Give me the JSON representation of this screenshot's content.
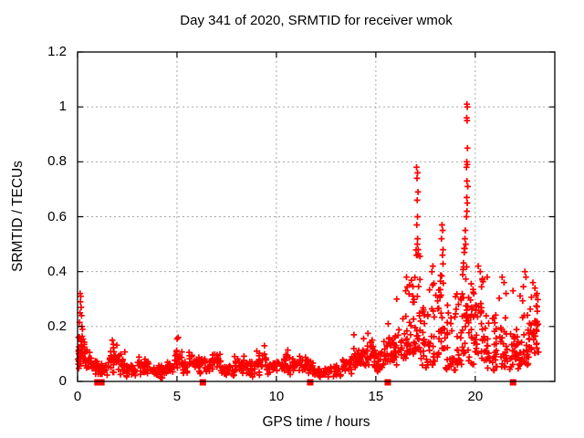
{
  "chart_data": {
    "type": "scatter",
    "title": "Day 341 of 2020, SRMTID for receiver wmok",
    "xlabel": "GPS time / hours",
    "ylabel": "SRMTID / TECUs",
    "xlim": [
      0,
      24
    ],
    "ylim": [
      0,
      1.2
    ],
    "grid": true,
    "legend": "none",
    "marker": "plus",
    "marker_color": "#ff0000",
    "grid_color": "#a6a6a6",
    "border_color": "#000000",
    "x_ticks": {
      "values": [
        0,
        5,
        10,
        15,
        20
      ],
      "labels": [
        "0",
        "5",
        "10",
        "15",
        "20"
      ]
    },
    "y_ticks": {
      "values": [
        0,
        0.2,
        0.4,
        0.6,
        0.8,
        1.0,
        1.2
      ],
      "labels": [
        "0",
        "0.2",
        "0.4",
        "0.6",
        "0.8",
        "1",
        "1.2"
      ]
    },
    "notable_points": [
      [
        0.13,
        0.32
      ],
      [
        0.16,
        0.31
      ],
      [
        0.14,
        0.29
      ],
      [
        0.18,
        0.27
      ],
      [
        0.12,
        0.25
      ],
      [
        0.2,
        0.24
      ],
      [
        0.1,
        0.215
      ],
      [
        0.22,
        0.2
      ],
      [
        0.25,
        0.19
      ],
      [
        1.75,
        0.15
      ],
      [
        1.8,
        0.135
      ],
      [
        5.0,
        0.155
      ],
      [
        5.06,
        0.16
      ],
      [
        9.4,
        0.13
      ],
      [
        13.9,
        0.17
      ],
      [
        14.6,
        0.175
      ],
      [
        15.62,
        0.21
      ],
      [
        16.05,
        0.3
      ],
      [
        16.5,
        0.33
      ],
      [
        17.05,
        0.78
      ],
      [
        17.1,
        0.76
      ],
      [
        17.07,
        0.74
      ],
      [
        17.12,
        0.69
      ],
      [
        17.08,
        0.66
      ],
      [
        17.1,
        0.6
      ],
      [
        17.06,
        0.57
      ],
      [
        17.1,
        0.52
      ],
      [
        17.09,
        0.5
      ],
      [
        17.13,
        0.48
      ],
      [
        17.05,
        0.46
      ],
      [
        17.82,
        0.4
      ],
      [
        17.87,
        0.42
      ],
      [
        18.33,
        0.57
      ],
      [
        18.36,
        0.55
      ],
      [
        18.3,
        0.52
      ],
      [
        18.38,
        0.48
      ],
      [
        18.35,
        0.46
      ],
      [
        19.58,
        1.01
      ],
      [
        19.6,
        1.0
      ],
      [
        19.57,
        0.96
      ],
      [
        19.59,
        0.95
      ],
      [
        19.61,
        0.85
      ],
      [
        19.57,
        0.8
      ],
      [
        19.6,
        0.79
      ],
      [
        19.56,
        0.78
      ],
      [
        19.58,
        0.73
      ],
      [
        19.62,
        0.71
      ],
      [
        19.57,
        0.67
      ],
      [
        19.6,
        0.65
      ],
      [
        19.58,
        0.62
      ],
      [
        19.56,
        0.6
      ],
      [
        19.5,
        0.55
      ],
      [
        19.48,
        0.52
      ],
      [
        19.52,
        0.5
      ],
      [
        19.45,
        0.47
      ],
      [
        20.15,
        0.42
      ],
      [
        20.25,
        0.4
      ],
      [
        20.6,
        0.38
      ],
      [
        21.35,
        0.38
      ],
      [
        21.45,
        0.36
      ],
      [
        21.9,
        0.33
      ],
      [
        22.5,
        0.4
      ],
      [
        22.55,
        0.38
      ],
      [
        22.9,
        0.36
      ],
      [
        23.0,
        0.34
      ],
      [
        23.1,
        0.32
      ]
    ],
    "dense_bands": [
      [
        0.02,
        0.12,
        0.02,
        0.12,
        10
      ],
      [
        0.05,
        0.35,
        0.04,
        0.2,
        26
      ],
      [
        0.35,
        0.65,
        0.03,
        0.14,
        16
      ],
      [
        0.65,
        1.0,
        0.02,
        0.1,
        18
      ],
      [
        1.0,
        1.5,
        0.015,
        0.07,
        24
      ],
      [
        1.5,
        2.0,
        0.02,
        0.14,
        26
      ],
      [
        2.0,
        2.45,
        0.02,
        0.11,
        20
      ],
      [
        2.45,
        3.0,
        0.015,
        0.07,
        24
      ],
      [
        3.0,
        3.6,
        0.02,
        0.09,
        26
      ],
      [
        3.6,
        4.4,
        0.01,
        0.065,
        32
      ],
      [
        4.4,
        4.9,
        0.02,
        0.08,
        22
      ],
      [
        4.9,
        5.25,
        0.03,
        0.13,
        16
      ],
      [
        5.25,
        5.6,
        0.02,
        0.08,
        16
      ],
      [
        5.6,
        6.1,
        0.02,
        0.11,
        20
      ],
      [
        6.1,
        6.6,
        0.02,
        0.1,
        22
      ],
      [
        6.6,
        7.2,
        0.02,
        0.115,
        28
      ],
      [
        7.2,
        7.8,
        0.012,
        0.07,
        26
      ],
      [
        7.8,
        8.4,
        0.02,
        0.1,
        26
      ],
      [
        8.4,
        9.0,
        0.015,
        0.08,
        26
      ],
      [
        9.0,
        9.6,
        0.02,
        0.12,
        24
      ],
      [
        9.6,
        10.1,
        0.02,
        0.09,
        22
      ],
      [
        10.1,
        10.6,
        0.03,
        0.12,
        22
      ],
      [
        10.6,
        11.1,
        0.02,
        0.09,
        22
      ],
      [
        11.1,
        11.6,
        0.02,
        0.1,
        22
      ],
      [
        11.6,
        12.0,
        0.02,
        0.08,
        18
      ],
      [
        12.0,
        12.7,
        0.01,
        0.05,
        26
      ],
      [
        12.7,
        13.3,
        0.015,
        0.07,
        24
      ],
      [
        13.3,
        13.8,
        0.02,
        0.1,
        22
      ],
      [
        13.8,
        14.3,
        0.03,
        0.13,
        24
      ],
      [
        14.3,
        14.9,
        0.04,
        0.16,
        28
      ],
      [
        14.9,
        15.4,
        0.03,
        0.13,
        26
      ],
      [
        15.4,
        15.9,
        0.04,
        0.18,
        26
      ],
      [
        15.9,
        16.3,
        0.05,
        0.22,
        24
      ],
      [
        16.3,
        16.7,
        0.08,
        0.38,
        26
      ],
      [
        16.7,
        17.0,
        0.1,
        0.46,
        22
      ],
      [
        17.0,
        17.25,
        0.12,
        0.5,
        18
      ],
      [
        17.25,
        17.6,
        0.05,
        0.28,
        20
      ],
      [
        17.6,
        18.0,
        0.06,
        0.36,
        24
      ],
      [
        18.0,
        18.3,
        0.08,
        0.38,
        18
      ],
      [
        18.25,
        18.5,
        0.12,
        0.44,
        16
      ],
      [
        18.5,
        19.0,
        0.04,
        0.28,
        26
      ],
      [
        19.0,
        19.35,
        0.06,
        0.32,
        24
      ],
      [
        19.35,
        19.65,
        0.1,
        0.5,
        28
      ],
      [
        19.65,
        20.0,
        0.06,
        0.36,
        26
      ],
      [
        20.0,
        20.45,
        0.08,
        0.38,
        30
      ],
      [
        20.45,
        21.0,
        0.04,
        0.26,
        28
      ],
      [
        21.0,
        21.55,
        0.05,
        0.33,
        30
      ],
      [
        21.55,
        22.2,
        0.03,
        0.2,
        32
      ],
      [
        22.2,
        22.7,
        0.06,
        0.35,
        32
      ],
      [
        22.7,
        23.2,
        0.1,
        0.33,
        36
      ]
    ],
    "zero_line_squares_x": [
      1.0,
      1.2,
      6.3,
      11.7,
      15.6,
      21.9
    ]
  }
}
